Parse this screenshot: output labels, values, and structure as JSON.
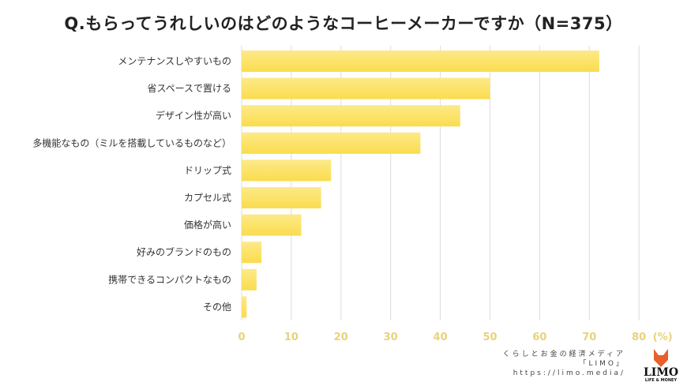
{
  "chart_data": {
    "type": "bar",
    "orientation": "horizontal",
    "title": "Q.もらってうれしいのはどのようなコーヒーメーカーですか（N=375）",
    "categories": [
      "メンテナンスしやすいもの",
      "省スペースで置ける",
      "デザイン性が高い",
      "多機能なもの（ミルを搭載しているものなど）",
      "ドリップ式",
      "カプセル式",
      "価格が高い",
      "好みのブランドのもの",
      "携帯できるコンパクトなもの",
      "その他"
    ],
    "values": [
      72,
      50,
      44,
      36,
      18,
      16,
      12,
      4,
      3,
      1
    ],
    "xlim": [
      0,
      80
    ],
    "xticks": [
      "0",
      "10",
      "20",
      "30",
      "40",
      "50",
      "60",
      "70",
      "80"
    ],
    "xunit": "(%)",
    "grid": true,
    "bar_color": "#fce36a",
    "tick_color": "#e8d27a"
  },
  "branding": {
    "tagline": "くらしとお金の経済メディア",
    "name_bracket": "「LIMO」",
    "url": "https://limo.media/",
    "logo_text": "LIMO",
    "logo_sub": "LIFE & MONEY"
  }
}
